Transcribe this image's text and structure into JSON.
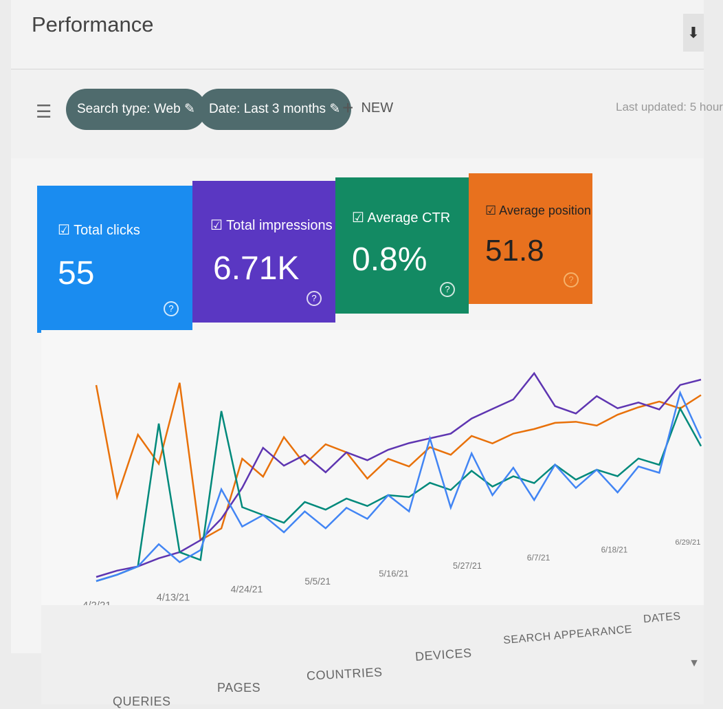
{
  "header": {
    "title": "Performance",
    "download_icon": "download-icon"
  },
  "filters": {
    "filter_icon": "filter-icon",
    "chips": [
      {
        "label": "Search type: Web",
        "icon": "pencil-icon"
      },
      {
        "label": "Date: Last 3 months",
        "icon": "pencil-icon"
      }
    ],
    "new_label": "NEW",
    "last_updated": "Last updated: 5 hour"
  },
  "metrics": [
    {
      "label": "Total clicks",
      "value": "55",
      "color": "#1a73e8"
    },
    {
      "label": "Total impressions",
      "value": "6.71K",
      "color": "#5e35b1"
    },
    {
      "label": "Average CTR",
      "value": "0.8%",
      "color": "#00897b"
    },
    {
      "label": "Average position",
      "value": "51.8",
      "color": "#e8710a"
    }
  ],
  "chart_data": {
    "type": "line",
    "x_ticks": [
      "4/2/21",
      "4/13/21",
      "4/24/21",
      "5/5/21",
      "5/16/21",
      "5/27/21",
      "6/7/21",
      "6/18/21",
      "6/29/21"
    ],
    "grid": false,
    "series": [
      {
        "name": "Average position",
        "color": "#e8710a",
        "values": [
          95,
          40,
          70,
          55,
          95,
          15,
          20,
          55,
          45,
          65,
          50,
          60,
          55,
          40,
          50,
          45,
          55,
          50,
          60,
          55,
          60,
          62,
          65,
          65,
          62,
          68,
          72,
          75,
          70,
          78
        ]
      },
      {
        "name": "Total impressions",
        "color": "#5e35b1",
        "values": [
          2,
          4,
          5,
          8,
          10,
          15,
          25,
          40,
          60,
          50,
          55,
          45,
          55,
          50,
          55,
          58,
          60,
          62,
          70,
          75,
          80,
          95,
          75,
          70,
          80,
          72,
          75,
          70,
          85,
          88
        ]
      },
      {
        "name": "Average CTR",
        "color": "#00897b",
        "values": [
          0,
          2,
          5,
          75,
          10,
          5,
          80,
          30,
          25,
          20,
          30,
          25,
          30,
          25,
          30,
          28,
          35,
          30,
          40,
          30,
          35,
          30,
          40,
          30,
          35,
          30,
          40,
          35,
          70,
          45
        ]
      },
      {
        "name": "Total clicks",
        "color": "#4285f4",
        "values": [
          0,
          2,
          5,
          15,
          5,
          10,
          40,
          20,
          25,
          15,
          25,
          15,
          25,
          18,
          30,
          20,
          60,
          20,
          50,
          25,
          40,
          20,
          40,
          25,
          35,
          20,
          35,
          30,
          80,
          50
        ]
      }
    ]
  },
  "tabs": [
    "QUERIES",
    "PAGES",
    "COUNTRIES",
    "DEVICES",
    "SEARCH APPEARANCE",
    "DATES"
  ]
}
